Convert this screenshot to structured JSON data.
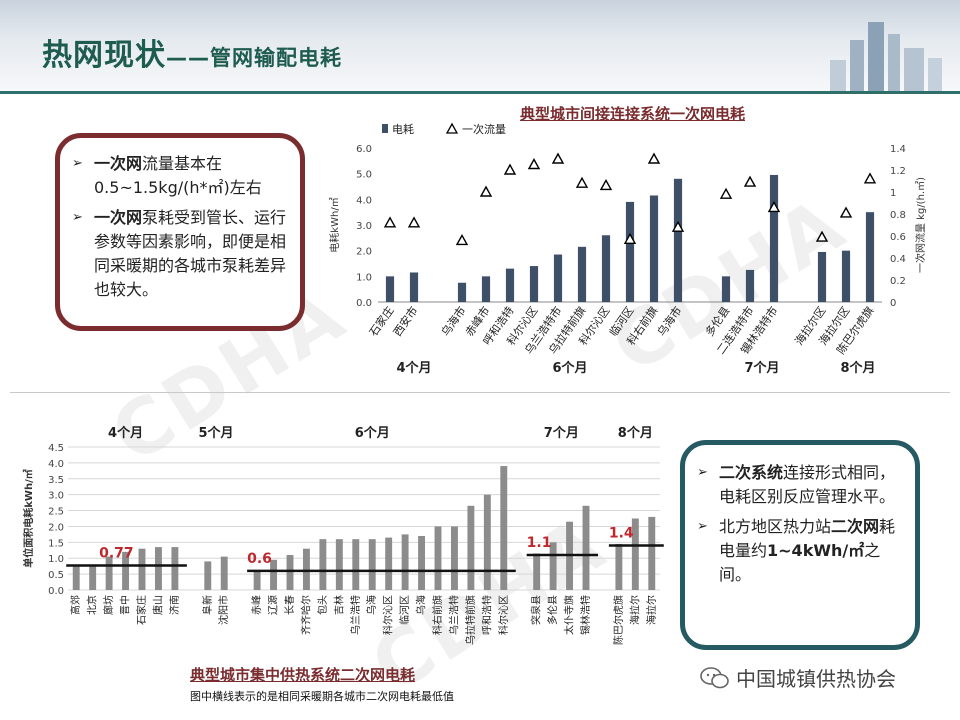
{
  "header": {
    "title_main": "热网现状",
    "title_dash": "——",
    "title_sub": "管网输配电耗"
  },
  "watermark": "CDHA",
  "box1": {
    "b1": {
      "bold": "一次网",
      "rest": "流量基本在0.5~1.5kg/(h*㎡)左右"
    },
    "b2": {
      "bold": "一次网",
      "rest": "泵耗受到管长、运行参数等因素影响，即便是相同采暖期的各城市泵耗差异也较大。"
    }
  },
  "box2": {
    "b1": {
      "bold": "二次系统",
      "rest": "连接形式相同，电耗区别反应管理水平。"
    },
    "b2": {
      "pre": "北方地区热力站",
      "bold": "二次网",
      "mid": "耗电量约",
      "bold2": "1~4kWh/㎡",
      "post": "之间。"
    }
  },
  "chart1_title": "典型城市间接连接系统一次网电耗",
  "chart2_title": "典型城市集中供热系统二次网电耗",
  "footnote": "图中横线表示的是相同采暖期各城市二次网电耗最低值",
  "logo_text": "中国城镇供热协会",
  "chart_data": [
    {
      "type": "bar",
      "title": "典型城市间接连接系统一次网电耗",
      "ylabel": "电耗kWh/㎡",
      "y2label": "一次网流量 kg/(h.㎡)",
      "ylim": [
        0,
        6
      ],
      "y2lim": [
        0,
        1.4
      ],
      "yticks": [
        "0.0",
        "1.0",
        "2.0",
        "3.0",
        "4.0",
        "5.0",
        "6.0"
      ],
      "y2ticks": [
        "0",
        "0.2",
        "0.4",
        "0.6",
        "0.8",
        "1",
        "1.2",
        "1.4"
      ],
      "legend": [
        "电耗",
        "一次流量"
      ],
      "legend_position": "top",
      "categories": [
        "石家庄",
        "西安市",
        "",
        "乌海市",
        "赤峰市",
        "呼和浩特",
        "科尔沁区",
        "乌兰浩特市",
        "乌拉特前旗",
        "科尔沁区",
        "临河区",
        "科右前旗",
        "乌海市",
        "",
        "多伦县",
        "二连浩特市",
        "锡林浩特市",
        "",
        "海拉尔区",
        "海拉尔区",
        "陈巴尔虎旗"
      ],
      "series": [
        {
          "name": "电耗",
          "values": [
            1.0,
            1.15,
            null,
            0.75,
            1.0,
            1.3,
            1.4,
            1.85,
            2.15,
            2.6,
            3.9,
            4.15,
            4.8,
            null,
            1.0,
            1.25,
            4.95,
            null,
            1.95,
            2.0,
            3.5
          ]
        },
        {
          "name": "一次流量",
          "values": [
            0.72,
            0.72,
            null,
            0.56,
            1.0,
            1.2,
            1.25,
            1.3,
            1.08,
            1.06,
            0.57,
            1.3,
            0.68,
            null,
            0.98,
            1.09,
            0.86,
            null,
            0.59,
            0.81,
            1.12
          ]
        }
      ],
      "groups": [
        {
          "label": "4个月"
        },
        {
          "label": "6个月"
        },
        {
          "label": "7个月"
        },
        {
          "label": "8个月"
        }
      ]
    },
    {
      "type": "bar",
      "title": "典型城市集中供热系统二次网电耗",
      "ylabel": "单位面积电耗kWh/㎡",
      "ylim": [
        0,
        4.5
      ],
      "yticks": [
        "0.0",
        "0.5",
        "1.0",
        "1.5",
        "2.0",
        "2.5",
        "3.0",
        "3.5",
        "4.0",
        "4.5"
      ],
      "categories": [
        "高郊",
        "北京",
        "廊坊",
        "晋中",
        "石家庄",
        "唐山",
        "济南",
        "",
        "阜新",
        "沈阳市",
        "",
        "赤峰",
        "辽源",
        "长春",
        "齐齐哈尔",
        "包头",
        "吉林",
        "乌兰浩特",
        "乌海",
        "科尔沁区",
        "临河区",
        "乌海",
        "科右前旗",
        "乌兰浩特",
        "乌拉特前旗",
        "呼和浩特",
        "科尔沁区",
        "",
        "突泉县",
        "多伦县",
        "太仆寺旗",
        "锡林浩特",
        "",
        "陈巴尔虎旗",
        "海拉尔",
        "海拉尔"
      ],
      "values": [
        0.75,
        0.78,
        1.05,
        1.2,
        1.3,
        1.35,
        1.35,
        null,
        0.9,
        1.05,
        null,
        0.6,
        0.95,
        1.1,
        1.3,
        1.6,
        1.6,
        1.6,
        1.6,
        1.65,
        1.75,
        1.7,
        2.0,
        2.0,
        2.65,
        3.0,
        3.9,
        null,
        1.15,
        1.5,
        2.15,
        2.65,
        null,
        1.45,
        2.25,
        2.3
      ],
      "min_lines": [
        {
          "label": "0.77",
          "value": 0.77
        },
        {
          "label": "0.6",
          "value": 0.6
        },
        {
          "label": "1.1",
          "value": 1.1
        },
        {
          "label": "1.4",
          "value": 1.4
        }
      ],
      "groups": [
        {
          "label": "4个月"
        },
        {
          "label": "5个月"
        },
        {
          "label": "6个月"
        },
        {
          "label": "7个月"
        },
        {
          "label": "8个月"
        }
      ]
    }
  ]
}
